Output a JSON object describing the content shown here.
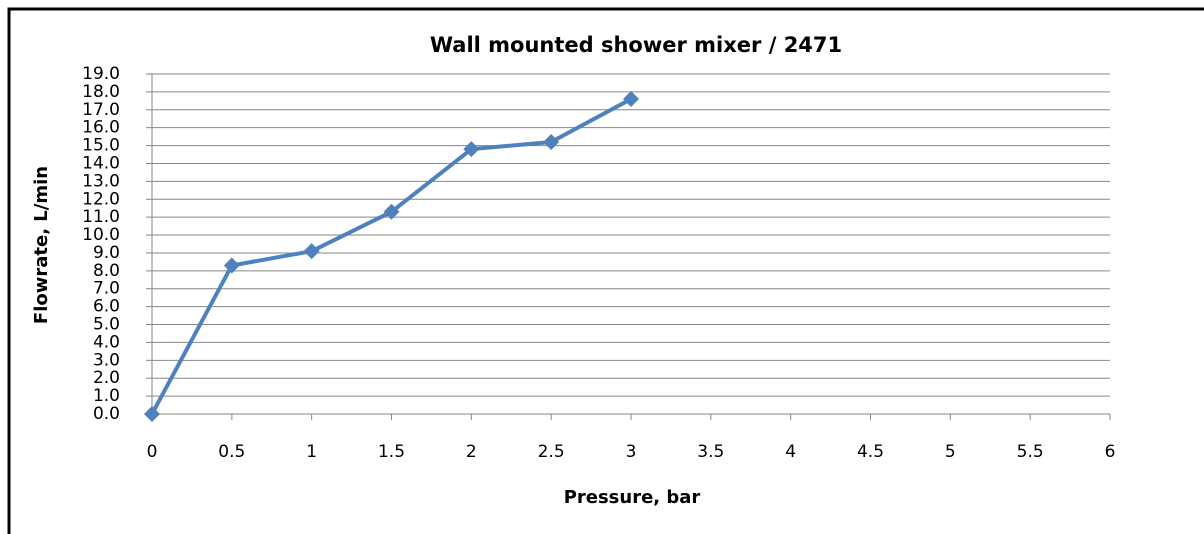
{
  "chart_data": {
    "type": "line",
    "title": "Wall mounted shower mixer / 2471",
    "x_label": "Pressure, bar",
    "y_label": "Flowrate, L/min",
    "x": [
      0,
      0.5,
      1,
      1.5,
      2,
      2.5,
      3
    ],
    "series": [
      {
        "name": "Flowrate",
        "color": "#4f81bd",
        "values": [
          0,
          8.3,
          9.1,
          11.3,
          14.8,
          15.2,
          17.6
        ]
      }
    ],
    "xlim": [
      0,
      6
    ],
    "xticks": [
      0,
      0.5,
      1,
      1.5,
      2,
      2.5,
      3,
      3.5,
      4,
      4.5,
      5,
      5.5,
      6
    ],
    "ylim": [
      0,
      19
    ],
    "yticks": [
      {
        "value": 0,
        "label": "0.0"
      },
      {
        "value": 1,
        "label": "1.0"
      },
      {
        "value": 2,
        "label": "2.0"
      },
      {
        "value": 3,
        "label": "3.0"
      },
      {
        "value": 4,
        "label": "4.0"
      },
      {
        "value": 5,
        "label": "5.0"
      },
      {
        "value": 6,
        "label": "6.0"
      },
      {
        "value": 7,
        "label": "7.0"
      },
      {
        "value": 8,
        "label": "8.0"
      },
      {
        "value": 9,
        "label": "9.0"
      },
      {
        "value": 10,
        "label": "10.0"
      },
      {
        "value": 11,
        "label": "11.0"
      },
      {
        "value": 12,
        "label": "12.0"
      },
      {
        "value": 13,
        "label": "13.0"
      },
      {
        "value": 14,
        "label": "14.0"
      },
      {
        "value": 15,
        "label": "15.0"
      },
      {
        "value": 16,
        "label": "16.0"
      },
      {
        "value": 17,
        "label": "17.0"
      },
      {
        "value": 18,
        "label": "18.0"
      },
      {
        "value": 19,
        "label": "19.0"
      }
    ],
    "grid": true
  }
}
